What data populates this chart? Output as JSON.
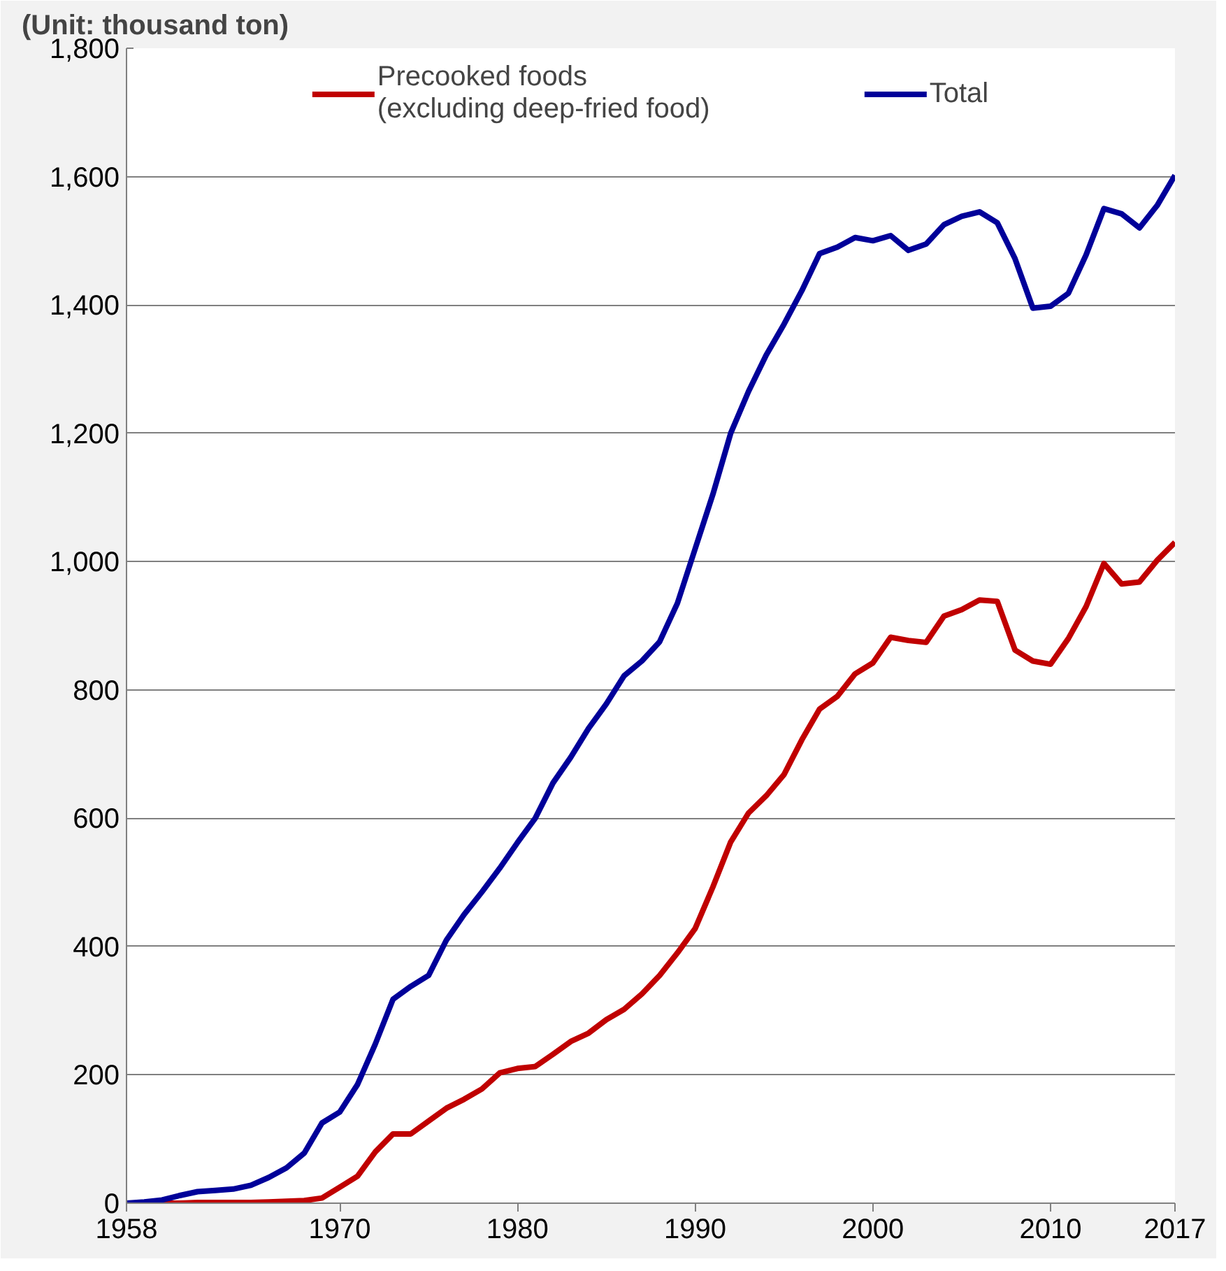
{
  "chart_data": {
    "type": "line",
    "ylabel": "(Unit: thousand ton)",
    "x": [
      1958,
      1959,
      1960,
      1961,
      1962,
      1963,
      1964,
      1965,
      1966,
      1967,
      1968,
      1969,
      1970,
      1971,
      1972,
      1973,
      1974,
      1975,
      1976,
      1977,
      1978,
      1979,
      1980,
      1981,
      1982,
      1983,
      1984,
      1985,
      1986,
      1987,
      1988,
      1989,
      1990,
      1991,
      1992,
      1993,
      1994,
      1995,
      1996,
      1997,
      1998,
      1999,
      2000,
      2001,
      2002,
      2003,
      2004,
      2005,
      2006,
      2007,
      2008,
      2009,
      2010,
      2011,
      2012,
      2013,
      2014,
      2015,
      2016,
      2017
    ],
    "series": [
      {
        "name": "Precooked foods\n(excluding deep-fried food)",
        "color": "#c00000",
        "values": [
          0,
          0,
          0,
          0,
          1,
          1,
          1,
          1,
          2,
          3,
          4,
          8,
          25,
          42,
          80,
          108,
          108,
          128,
          148,
          162,
          178,
          203,
          210,
          213,
          232,
          252,
          265,
          286,
          302,
          326,
          355,
          390,
          428,
          493,
          563,
          608,
          635,
          668,
          722,
          770,
          790,
          825,
          842,
          882,
          877,
          874,
          915,
          925,
          940,
          938,
          862,
          845,
          840,
          880,
          930,
          997,
          965,
          968,
          1002,
          1030
        ]
      },
      {
        "name": "Total",
        "color": "#000099",
        "values": [
          0,
          2,
          5,
          12,
          18,
          20,
          22,
          28,
          40,
          55,
          78,
          125,
          142,
          185,
          248,
          318,
          338,
          355,
          410,
          450,
          485,
          522,
          562,
          600,
          655,
          695,
          740,
          778,
          822,
          845,
          875,
          935,
          1020,
          1105,
          1200,
          1265,
          1322,
          1370,
          1422,
          1480,
          1490,
          1505,
          1500,
          1508,
          1485,
          1495,
          1525,
          1538,
          1545,
          1528,
          1472,
          1395,
          1398,
          1418,
          1478,
          1550,
          1542,
          1520,
          1555,
          1602
        ]
      }
    ],
    "xlim": [
      1958,
      2017
    ],
    "xticks": [
      1958,
      1970,
      1980,
      1990,
      2000,
      2010,
      2017
    ],
    "ylim": [
      0,
      1800
    ],
    "yticks": [
      {
        "value": 0,
        "label": "0"
      },
      {
        "value": 200,
        "label": "200"
      },
      {
        "value": 400,
        "label": "400"
      },
      {
        "value": 600,
        "label": "600"
      },
      {
        "value": 800,
        "label": "800"
      },
      {
        "value": 1000,
        "label": "1,000"
      },
      {
        "value": 1200,
        "label": "1,200"
      },
      {
        "value": 1400,
        "label": "1,400"
      },
      {
        "value": 1600,
        "label": "1,600"
      },
      {
        "value": 1800,
        "label": "1,800"
      }
    ],
    "grid": "y",
    "legend": "top",
    "line_style": "solid",
    "marker": "none"
  }
}
